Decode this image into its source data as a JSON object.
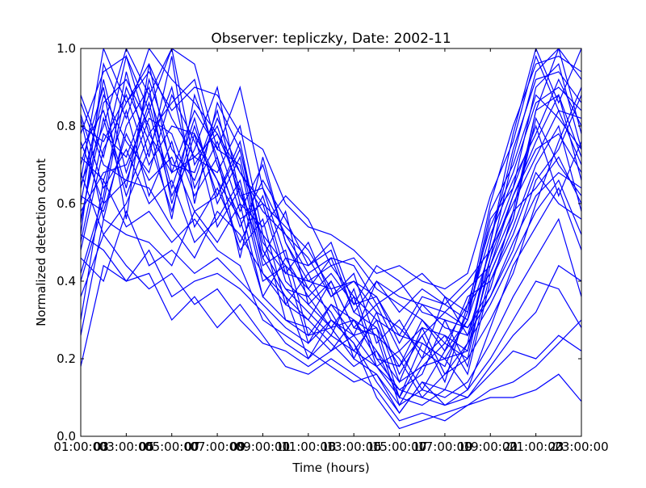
{
  "chart_data": {
    "type": "line",
    "title": "Observer: tepliczky, Date: 2002-11",
    "xlabel": "Time (hours)",
    "ylabel": "Normalized detection count",
    "xlim": [
      1,
      23
    ],
    "ylim": [
      0,
      1
    ],
    "x_ticks": [
      1,
      3,
      5,
      7,
      9,
      11,
      13,
      15,
      17,
      19,
      21,
      23
    ],
    "x_tick_labels": [
      "01:00:00",
      "03:00:00",
      "05:00:00",
      "07:00:00",
      "09:00:00",
      "11:00:00",
      "13:00:00",
      "15:00:00",
      "17:00:00",
      "19:00:00",
      "21:00:00",
      "23:00:00"
    ],
    "x_tick_labels_overlapping": [
      "03",
      "05",
      "07",
      "09",
      "11",
      "13",
      "15",
      "17",
      "19",
      "21",
      "23"
    ],
    "y_ticks": [
      0,
      0.2,
      0.4,
      0.6,
      0.8,
      1.0
    ],
    "y_tick_labels": [
      "0.0",
      "0.2",
      "0.4",
      "0.6",
      "0.8",
      "1.0"
    ],
    "grid": false,
    "legend": "none",
    "line_color": "#0000ff",
    "x": [
      1,
      2,
      3,
      4,
      5,
      6,
      7,
      8,
      9,
      10,
      11,
      12,
      13,
      14,
      15,
      16,
      17,
      18,
      19,
      20,
      21,
      22,
      23
    ],
    "series": [
      {
        "values": [
          0.52,
          0.96,
          0.82,
          1.0,
          0.92,
          0.86,
          0.78,
          0.64,
          0.46,
          0.36,
          0.3,
          0.4,
          0.28,
          0.26,
          0.08,
          0.18,
          0.24,
          0.2,
          0.46,
          0.72,
          0.94,
          1.0,
          0.92
        ]
      },
      {
        "values": [
          0.65,
          0.8,
          1.0,
          0.88,
          1.0,
          0.7,
          0.8,
          0.62,
          0.52,
          0.44,
          0.38,
          0.32,
          0.22,
          0.3,
          0.14,
          0.28,
          0.16,
          0.24,
          0.5,
          0.78,
          1.0,
          0.86,
          1.0
        ]
      },
      {
        "values": [
          0.88,
          0.72,
          0.98,
          0.78,
          0.86,
          0.92,
          0.7,
          0.56,
          0.6,
          0.4,
          0.34,
          0.28,
          0.36,
          0.18,
          0.22,
          0.12,
          0.22,
          0.3,
          0.56,
          0.64,
          0.9,
          0.96,
          0.74
        ]
      },
      {
        "values": [
          0.42,
          0.62,
          0.94,
          0.72,
          0.98,
          0.6,
          0.86,
          0.74,
          0.5,
          0.42,
          0.4,
          0.38,
          0.2,
          0.32,
          0.16,
          0.26,
          0.32,
          0.28,
          0.38,
          0.58,
          0.84,
          1.0,
          0.78
        ]
      },
      {
        "values": [
          0.7,
          0.9,
          0.56,
          0.96,
          0.68,
          0.84,
          0.74,
          0.7,
          0.44,
          0.48,
          0.26,
          0.34,
          0.3,
          0.22,
          0.1,
          0.2,
          0.26,
          0.22,
          0.44,
          0.62,
          0.76,
          0.88,
          0.66
        ]
      },
      {
        "values": [
          0.8,
          0.76,
          0.88,
          0.7,
          0.8,
          0.78,
          0.66,
          0.48,
          0.56,
          0.34,
          0.42,
          0.3,
          0.26,
          0.28,
          0.18,
          0.3,
          0.22,
          0.36,
          0.4,
          0.54,
          0.7,
          0.8,
          0.58
        ]
      },
      {
        "values": [
          0.58,
          0.68,
          0.7,
          0.84,
          0.62,
          0.74,
          0.9,
          0.62,
          0.64,
          0.46,
          0.36,
          0.42,
          0.34,
          0.36,
          0.24,
          0.34,
          0.28,
          0.26,
          0.36,
          0.48,
          0.66,
          0.74,
          0.88
        ]
      },
      {
        "values": [
          0.74,
          0.84,
          0.64,
          0.92,
          0.74,
          0.66,
          0.82,
          0.68,
          0.58,
          0.52,
          0.46,
          0.36,
          0.4,
          0.32,
          0.28,
          0.22,
          0.18,
          0.32,
          0.52,
          0.66,
          0.78,
          0.92,
          0.8
        ]
      },
      {
        "values": [
          0.62,
          0.58,
          0.78,
          0.66,
          0.72,
          0.58,
          0.62,
          0.76,
          0.48,
          0.38,
          0.32,
          0.26,
          0.38,
          0.2,
          0.12,
          0.16,
          0.3,
          0.18,
          0.42,
          0.56,
          0.82,
          0.7,
          0.62
        ]
      },
      {
        "values": [
          0.55,
          0.86,
          0.92,
          0.8,
          0.56,
          0.88,
          0.72,
          0.54,
          0.66,
          0.56,
          0.44,
          0.48,
          0.32,
          0.4,
          0.32,
          0.38,
          0.34,
          0.4,
          0.48,
          0.6,
          0.72,
          0.84,
          0.7
        ]
      },
      {
        "values": [
          0.83,
          0.64,
          0.74,
          0.6,
          0.66,
          0.5,
          0.56,
          0.66,
          0.42,
          0.36,
          0.2,
          0.3,
          0.24,
          0.14,
          0.06,
          0.14,
          0.12,
          0.24,
          0.34,
          0.46,
          0.58,
          0.66,
          0.52
        ]
      },
      {
        "values": [
          0.48,
          0.74,
          0.86,
          0.96,
          0.82,
          0.72,
          0.68,
          0.8,
          0.52,
          0.3,
          0.28,
          0.22,
          0.3,
          0.26,
          0.2,
          0.1,
          0.16,
          0.2,
          0.3,
          0.42,
          0.6,
          0.76,
          0.9
        ]
      },
      {
        "values": [
          0.68,
          0.52,
          0.6,
          0.74,
          0.9,
          0.64,
          0.76,
          0.58,
          0.7,
          0.5,
          0.4,
          0.44,
          0.36,
          0.3,
          0.26,
          0.24,
          0.2,
          0.3,
          0.58,
          0.7,
          0.88,
          0.82,
          0.74
        ]
      },
      {
        "values": [
          0.6,
          0.92,
          0.68,
          0.86,
          0.64,
          0.82,
          0.6,
          0.72,
          0.46,
          0.58,
          0.34,
          0.4,
          0.28,
          0.34,
          0.22,
          0.28,
          0.26,
          0.16,
          0.4,
          0.52,
          0.68,
          0.6,
          0.56
        ]
      },
      {
        "values": [
          0.72,
          0.66,
          0.84,
          0.62,
          0.76,
          0.54,
          0.64,
          0.5,
          0.62,
          0.42,
          0.5,
          0.36,
          0.42,
          0.24,
          0.3,
          0.2,
          0.36,
          0.26,
          0.46,
          0.62,
          0.74,
          0.78,
          0.68
        ]
      },
      {
        "values": [
          0.5,
          0.78,
          0.72,
          0.88,
          0.7,
          0.68,
          0.84,
          0.6,
          0.54,
          0.62,
          0.56,
          0.44,
          0.46,
          0.38,
          0.34,
          0.3,
          0.24,
          0.34,
          0.54,
          0.68,
          0.86,
          0.9,
          0.84
        ]
      },
      {
        "values": [
          0.76,
          0.6,
          0.9,
          0.76,
          0.58,
          0.78,
          0.54,
          0.64,
          0.4,
          0.44,
          0.24,
          0.34,
          0.26,
          0.4,
          0.36,
          0.34,
          0.32,
          0.38,
          0.44,
          0.58,
          0.64,
          0.72,
          0.6
        ]
      },
      {
        "values": [
          0.86,
          0.7,
          0.66,
          0.82,
          0.78,
          0.62,
          0.72,
          0.46,
          0.72,
          0.5,
          0.38,
          0.46,
          0.32,
          0.28,
          0.1,
          0.24,
          0.2,
          0.22,
          0.5,
          0.74,
          0.92,
          0.94,
          0.86
        ]
      },
      {
        "values": [
          0.64,
          0.88,
          0.76,
          0.68,
          0.88,
          0.76,
          0.66,
          0.56,
          0.36,
          0.46,
          0.44,
          0.5,
          0.34,
          0.44,
          0.4,
          0.32,
          0.3,
          0.28,
          0.36,
          0.5,
          0.62,
          0.68,
          0.64
        ]
      },
      {
        "values": [
          0.56,
          0.82,
          0.62,
          0.78,
          0.68,
          0.72,
          0.78,
          0.68,
          0.6,
          0.54,
          0.48,
          0.38,
          0.4,
          0.36,
          0.26,
          0.36,
          0.34,
          0.3,
          0.48,
          0.64,
          0.8,
          0.62,
          0.76
        ]
      },
      {
        "values": [
          0.82,
          0.56,
          0.8,
          0.9,
          0.6,
          0.8,
          0.62,
          0.74,
          0.48,
          0.38,
          0.36,
          0.28,
          0.3,
          0.2,
          0.18,
          0.26,
          0.14,
          0.34,
          0.42,
          0.56,
          0.84,
          0.88,
          0.72
        ]
      },
      {
        "values": [
          0.26,
          0.56,
          0.52,
          0.5,
          0.44,
          0.58,
          0.5,
          0.6,
          0.36,
          0.3,
          0.26,
          0.28,
          0.2,
          0.16,
          0.08,
          0.12,
          0.1,
          0.14,
          0.24,
          0.36,
          0.46,
          0.56,
          0.36
        ]
      },
      {
        "values": [
          0.4,
          0.6,
          0.66,
          0.64,
          0.54,
          0.46,
          0.58,
          0.52,
          0.42,
          0.34,
          0.3,
          0.24,
          0.18,
          0.22,
          0.14,
          0.18,
          0.2,
          0.12,
          0.28,
          0.44,
          0.54,
          0.64,
          0.48
        ]
      },
      {
        "values": [
          0.18,
          0.44,
          0.4,
          0.48,
          0.36,
          0.4,
          0.42,
          0.38,
          0.32,
          0.24,
          0.2,
          0.26,
          0.22,
          0.18,
          0.12,
          0.1,
          0.08,
          0.12,
          0.2,
          0.3,
          0.4,
          0.38,
          0.28
        ]
      },
      {
        "values": [
          0.52,
          0.48,
          0.4,
          0.42,
          0.3,
          0.36,
          0.28,
          0.34,
          0.26,
          0.18,
          0.16,
          0.2,
          0.16,
          0.12,
          0.04,
          0.06,
          0.04,
          0.08,
          0.1,
          0.1,
          0.12,
          0.16,
          0.09
        ]
      },
      {
        "values": [
          0.36,
          0.52,
          0.44,
          0.38,
          0.42,
          0.34,
          0.38,
          0.3,
          0.24,
          0.22,
          0.18,
          0.22,
          0.26,
          0.18,
          0.1,
          0.08,
          0.12,
          0.1,
          0.16,
          0.22,
          0.2,
          0.26,
          0.22
        ]
      },
      {
        "values": [
          0.46,
          0.4,
          0.58,
          0.44,
          0.48,
          0.42,
          0.46,
          0.4,
          0.34,
          0.28,
          0.24,
          0.3,
          0.24,
          0.1,
          0.02,
          0.04,
          0.06,
          0.08,
          0.12,
          0.14,
          0.18,
          0.24,
          0.3
        ]
      },
      {
        "values": [
          0.3,
          0.66,
          0.54,
          0.58,
          0.5,
          0.56,
          0.48,
          0.44,
          0.3,
          0.26,
          0.22,
          0.18,
          0.14,
          0.16,
          0.06,
          0.14,
          0.08,
          0.1,
          0.18,
          0.26,
          0.32,
          0.44,
          0.4
        ]
      },
      {
        "values": [
          0.78,
          0.94,
          0.98,
          0.84,
          1.0,
          0.96,
          0.74,
          0.9,
          0.64,
          0.52,
          0.42,
          0.46,
          0.44,
          0.34,
          0.38,
          0.42,
          0.36,
          0.32,
          0.6,
          0.8,
          0.96,
          0.98,
          0.94
        ]
      },
      {
        "values": [
          0.66,
          1.0,
          0.86,
          0.94,
          0.84,
          0.9,
          0.88,
          0.78,
          0.74,
          0.6,
          0.54,
          0.52,
          0.48,
          0.42,
          0.44,
          0.4,
          0.38,
          0.42,
          0.62,
          0.76,
          0.98,
          0.84,
          0.82
        ]
      }
    ]
  }
}
